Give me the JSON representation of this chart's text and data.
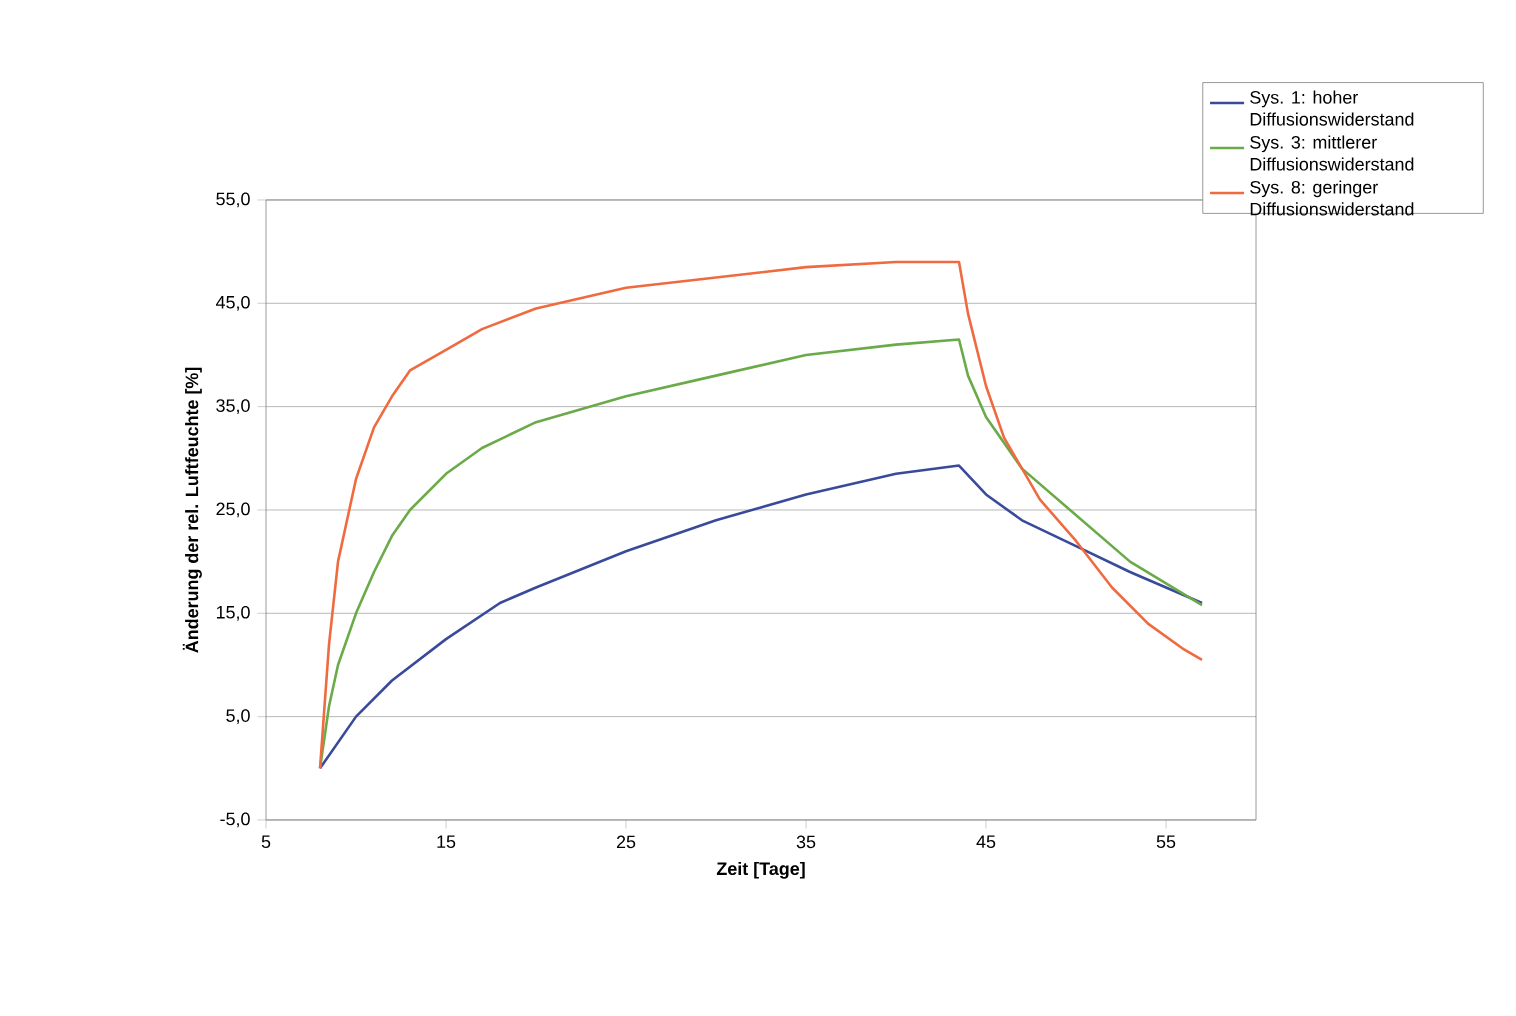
{
  "chart_data": {
    "type": "line",
    "xlabel": "Zeit [Tage]",
    "ylabel": "Änderung der rel. Luftfeuchte [%]",
    "xlim": [
      5,
      60
    ],
    "xticks": [
      5,
      15,
      25,
      35,
      45,
      55
    ],
    "ylim": [
      -5,
      55
    ],
    "yticks": [
      {
        "value": -5,
        "label": "-5,0"
      },
      {
        "value": 5,
        "label": "5,0"
      },
      {
        "value": 15,
        "label": "15,0"
      },
      {
        "value": 25,
        "label": "25,0"
      },
      {
        "value": 35,
        "label": "35,0"
      },
      {
        "value": 45,
        "label": "45,0"
      },
      {
        "value": 55,
        "label": "55,0"
      }
    ],
    "grid": "y",
    "legend": "top right",
    "marker": "none",
    "line_style": "solid",
    "series": [
      {
        "name": "Sys. 1: hoher Diffusionswiderstand",
        "color": "#3a4a9a",
        "x": [
          8,
          9,
          10,
          12,
          15,
          18,
          20,
          25,
          30,
          35,
          40,
          43.5,
          45,
          47,
          50,
          53,
          57
        ],
        "values": [
          0,
          2.5,
          5,
          8.5,
          12.5,
          16,
          17.5,
          21,
          24,
          26.5,
          28.5,
          29.3,
          26.5,
          24,
          21.5,
          19,
          16
        ]
      },
      {
        "name": "Sys. 3: mittlerer Diffusionswiderstand",
        "color": "#6aaa48",
        "x": [
          8,
          8.5,
          9,
          10,
          11,
          12,
          13,
          15,
          17,
          20,
          25,
          30,
          35,
          40,
          43.5,
          44,
          45,
          47,
          50,
          53,
          57
        ],
        "values": [
          0,
          6,
          10,
          15,
          19,
          22.5,
          25,
          28.5,
          31,
          33.5,
          36,
          38,
          40,
          41,
          41.5,
          38,
          34,
          29,
          24.5,
          20,
          15.8
        ]
      },
      {
        "name": "Sys. 8: geringer Diffusionswiderstand",
        "color": "#f06a40",
        "x": [
          8,
          8.5,
          9,
          10,
          11,
          12,
          13,
          15,
          17,
          20,
          25,
          30,
          35,
          40,
          43.5,
          44,
          45,
          46,
          48,
          50,
          52,
          54,
          56,
          57
        ],
        "values": [
          0,
          12,
          20,
          28,
          33,
          36,
          38.5,
          40.5,
          42.5,
          44.5,
          46.5,
          47.5,
          48.5,
          49,
          49,
          44,
          37,
          32,
          26,
          22,
          17.5,
          14,
          11.5,
          10.5
        ]
      }
    ]
  }
}
